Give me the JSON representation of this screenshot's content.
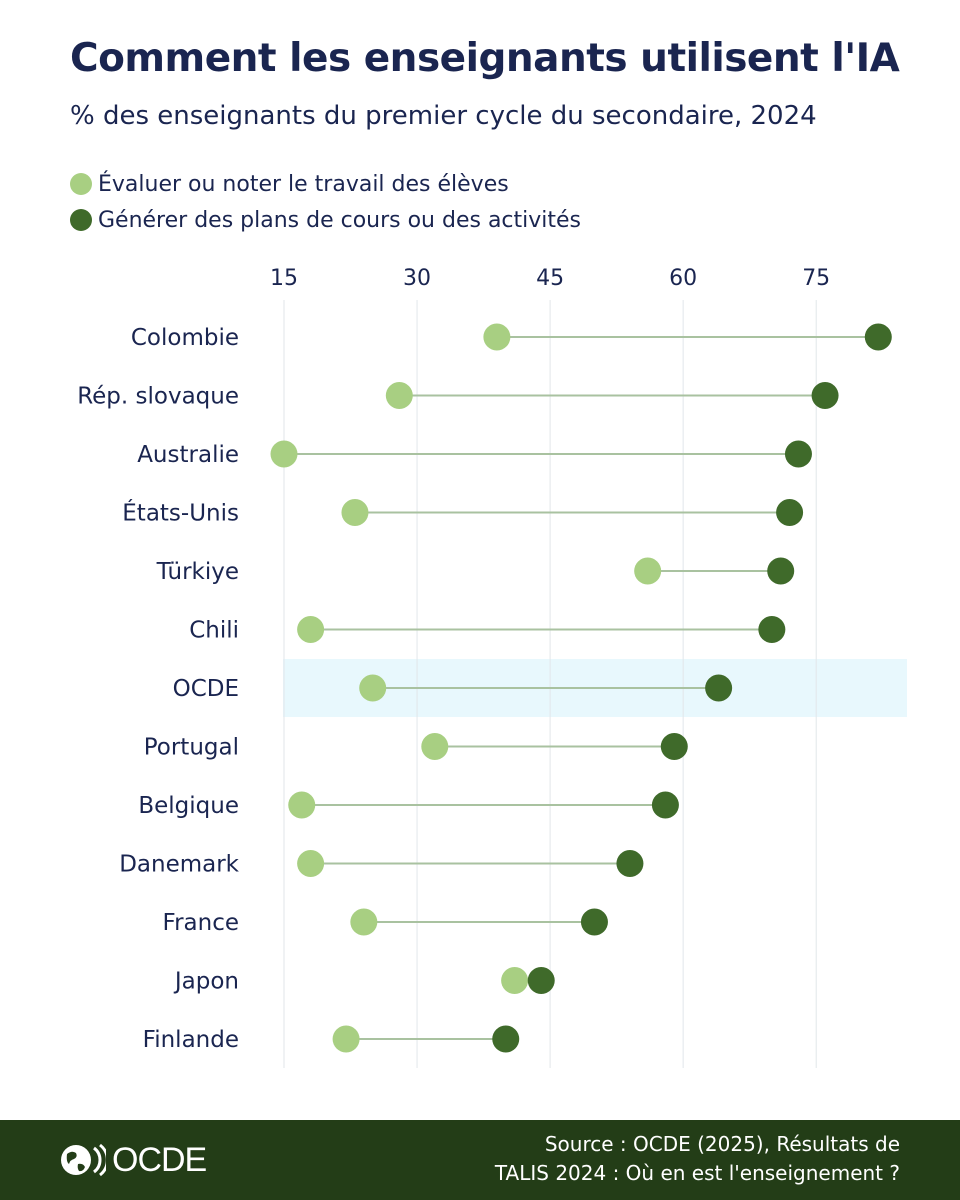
{
  "header": {
    "title": "Comment les enseignants utilisent l'IA",
    "subtitle": "% des enseignants du premier cycle du secondaire, 2024"
  },
  "legend": [
    {
      "label": "Évaluer ou noter le travail des élèves",
      "color": "#a8cf82"
    },
    {
      "label": "Générer des plans de cours ou des activités",
      "color": "#3f6a2a"
    }
  ],
  "colors": {
    "light": "#a8cf82",
    "dark": "#3f6a2a",
    "connector": "#a9c2a0",
    "highlight": "#e8f8fd",
    "grid": "#e2e6ea",
    "text": "#1a2550",
    "footer_bg": "#233d17"
  },
  "chart_data": {
    "type": "dumbbell",
    "title": "Comment les enseignants utilisent l'IA",
    "subtitle": "% des enseignants du premier cycle du secondaire, 2024",
    "xlim": [
      15,
      85
    ],
    "xticks": [
      15,
      30,
      45,
      60,
      75
    ],
    "highlight": "OCDE",
    "categories": [
      "Colombie",
      "Rép. slovaque",
      "Australie",
      "États-Unis",
      "Türkiye",
      "Chili",
      "OCDE",
      "Portugal",
      "Belgique",
      "Danemark",
      "France",
      "Japon",
      "Finlande"
    ],
    "series": [
      {
        "name": "Évaluer ou noter le travail des élèves",
        "values": [
          39,
          28,
          15,
          23,
          56,
          18,
          25,
          32,
          17,
          18,
          24,
          41,
          22
        ]
      },
      {
        "name": "Générer des plans de cours ou des activités",
        "values": [
          82,
          76,
          73,
          72,
          71,
          70,
          64,
          59,
          58,
          54,
          50,
          44,
          40
        ]
      }
    ]
  },
  "footer": {
    "logo_text": "OCDE",
    "source_line1": "Source : OCDE (2025), Résultats de",
    "source_line2": "TALIS 2024 : Où en est l'enseignement ?"
  }
}
